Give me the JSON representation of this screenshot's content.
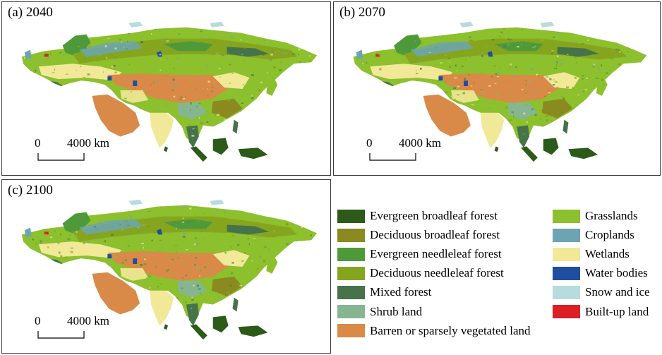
{
  "panels": [
    {
      "label": "(a) 2040"
    },
    {
      "label": "(b) 2070"
    },
    {
      "label": "(c) 2100"
    }
  ],
  "scale": {
    "zero": "0",
    "max": "4000 km"
  },
  "legend": {
    "items": [
      {
        "label": "Evergreen broadleaf forest",
        "color": "#2c5a18"
      },
      {
        "label": "Deciduous broadleaf forest",
        "color": "#8a8a20"
      },
      {
        "label": "Evergreen needleleaf forest",
        "color": "#4e9a3a"
      },
      {
        "label": "Deciduous needleleaf forest",
        "color": "#86a51e"
      },
      {
        "label": "Mixed forest",
        "color": "#46734a"
      },
      {
        "label": "Shrub land",
        "color": "#86b592"
      },
      {
        "label": "Barren or sparsely vegetated land",
        "color": "#d98a48"
      },
      {
        "label": "Grasslands",
        "color": "#8cc02c"
      },
      {
        "label": "Croplands",
        "color": "#6ca4b2"
      },
      {
        "label": "Wetlands",
        "color": "#f1e898"
      },
      {
        "label": "Water bodies",
        "color": "#1f4ea0"
      },
      {
        "label": "Snow and ice",
        "color": "#b8dcde"
      },
      {
        "label": "Built-up land",
        "color": "#dc1f25"
      }
    ]
  }
}
